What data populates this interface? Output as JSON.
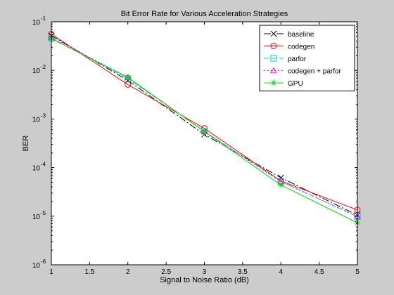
{
  "chart_data": {
    "type": "line",
    "title": "Bit Error Rate for Various Acceleration Strategies",
    "xlabel": "Signal to Noise Ratio (dB)",
    "ylabel": "BER",
    "xlim": [
      1,
      5
    ],
    "ylim_log10": [
      -6,
      -1
    ],
    "yscale": "log",
    "grid": false,
    "legend_position": "top-right",
    "x_ticks": [
      {
        "value": 1,
        "label": "1"
      },
      {
        "value": 1.5,
        "label": "1.5"
      },
      {
        "value": 2,
        "label": "2"
      },
      {
        "value": 2.5,
        "label": "2.5"
      },
      {
        "value": 3,
        "label": "3"
      },
      {
        "value": 3.5,
        "label": "3.5"
      },
      {
        "value": 4,
        "label": "4"
      },
      {
        "value": 4.5,
        "label": "4.5"
      },
      {
        "value": 5,
        "label": "5"
      }
    ],
    "y_ticks": [
      {
        "value": 1e-06,
        "mantissa": "10",
        "exp": "-6"
      },
      {
        "value": 1e-05,
        "mantissa": "10",
        "exp": "-5"
      },
      {
        "value": 0.0001,
        "mantissa": "10",
        "exp": "-4"
      },
      {
        "value": 0.001,
        "mantissa": "10",
        "exp": "-3"
      },
      {
        "value": 0.01,
        "mantissa": "10",
        "exp": "-2"
      },
      {
        "value": 0.1,
        "mantissa": "10",
        "exp": "-1"
      }
    ],
    "x": [
      1,
      2,
      3,
      4,
      5
    ],
    "series": [
      {
        "name": "baseline",
        "color": "#000000",
        "dash": "10,3,2,3",
        "marker": "x",
        "values": [
          0.052,
          0.0062,
          0.00048,
          6.2e-05,
          1.05e-05
        ]
      },
      {
        "name": "codegen",
        "color": "#ff0000",
        "dash": "",
        "marker": "circle",
        "values": [
          0.056,
          0.0051,
          0.00064,
          5.3e-05,
          1.35e-05
        ]
      },
      {
        "name": "parfor",
        "color": "#00cccc",
        "dash": "8,3",
        "marker": "square",
        "values": [
          0.046,
          0.0068,
          0.00056,
          5.2e-05,
          9.8e-06
        ]
      },
      {
        "name": "codegen + parfor",
        "color": "#ff00ff",
        "dash": "2,3",
        "marker": "triangle",
        "values": [
          0.048,
          0.0072,
          0.00055,
          5.1e-05,
          9.9e-06
        ]
      },
      {
        "name": "GPU",
        "color": "#00dd00",
        "dash": "",
        "marker": "star",
        "values": [
          0.045,
          0.0072,
          0.00055,
          4.4e-05,
          7.3e-06
        ]
      }
    ]
  }
}
